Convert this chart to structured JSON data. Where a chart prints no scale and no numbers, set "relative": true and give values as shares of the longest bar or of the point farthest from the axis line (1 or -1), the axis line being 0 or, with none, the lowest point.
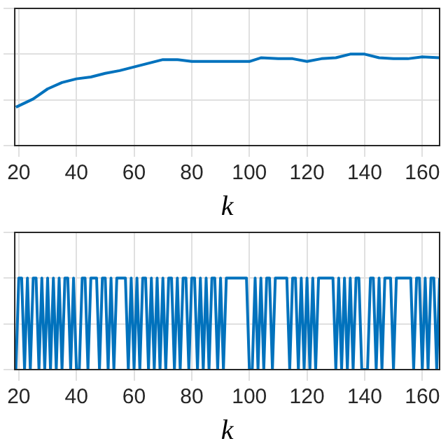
{
  "chart_data": [
    {
      "type": "line",
      "relative": true,
      "xlabel": "k",
      "xlim": [
        18.6,
        166
      ],
      "xticks": [
        20,
        40,
        60,
        80,
        100,
        120,
        140,
        160
      ],
      "grid": true,
      "marker": "none",
      "color": "#0072bd",
      "x": [
        19,
        25,
        30,
        35,
        40,
        45,
        50,
        55,
        60,
        65,
        70,
        75,
        80,
        85,
        90,
        100,
        104,
        110,
        115,
        120,
        125,
        130,
        135,
        140,
        145,
        150,
        155,
        160,
        166
      ],
      "values": [
        0.42,
        0.51,
        0.62,
        0.69,
        0.73,
        0.75,
        0.79,
        0.82,
        0.86,
        0.9,
        0.94,
        0.94,
        0.92,
        0.92,
        0.92,
        0.92,
        0.96,
        0.95,
        0.95,
        0.92,
        0.95,
        0.96,
        1,
        1,
        0.96,
        0.95,
        0.95,
        0.97,
        0.96
      ]
    },
    {
      "type": "line",
      "relative": true,
      "xlabel": "k",
      "xlim": [
        18.6,
        166
      ],
      "xticks": [
        20,
        40,
        60,
        80,
        100,
        120,
        140,
        160
      ],
      "grid": true,
      "marker": "none",
      "color": "#0072bd",
      "x": [
        19,
        20,
        21,
        22,
        23,
        24,
        25,
        26,
        27,
        28,
        29,
        30,
        31,
        32,
        33,
        34,
        35,
        36,
        37,
        38,
        39,
        40,
        41,
        42,
        43,
        44,
        45,
        46,
        47,
        48,
        49,
        50,
        51,
        52,
        53,
        54,
        55,
        56,
        57,
        58,
        59,
        60,
        61,
        62,
        63,
        64,
        65,
        66,
        67,
        68,
        69,
        70,
        71,
        72,
        73,
        74,
        75,
        76,
        77,
        78,
        79,
        80,
        81,
        82,
        83,
        84,
        85,
        86,
        87,
        88,
        89,
        90,
        91,
        92,
        93,
        94,
        95,
        96,
        97,
        98,
        99,
        100,
        101,
        102,
        103,
        104,
        105,
        106,
        107,
        108,
        109,
        110,
        111,
        112,
        113,
        114,
        115,
        116,
        117,
        118,
        119,
        120,
        121,
        122,
        123,
        124,
        125,
        126,
        127,
        128,
        129,
        130,
        131,
        132,
        133,
        134,
        135,
        136,
        137,
        138,
        139,
        140,
        141,
        142,
        143,
        144,
        145,
        146,
        147,
        148,
        149,
        150,
        151,
        152,
        153,
        154,
        155,
        156,
        157,
        158,
        159,
        160,
        161,
        162,
        163,
        164,
        165,
        166
      ],
      "values": [
        0,
        1,
        1,
        0,
        1,
        0,
        1,
        1,
        0,
        1,
        0,
        1,
        0,
        1,
        0,
        1,
        0,
        1,
        1,
        0,
        1,
        0,
        0,
        1,
        1,
        0,
        1,
        1,
        1,
        0,
        1,
        1,
        0,
        1,
        0,
        1,
        1,
        1,
        1,
        0,
        1,
        0,
        1,
        0,
        1,
        1,
        0,
        1,
        0,
        1,
        0,
        1,
        0,
        1,
        1,
        0,
        1,
        0,
        1,
        1,
        0,
        1,
        1,
        0,
        1,
        0,
        1,
        0,
        1,
        1,
        0,
        1,
        0,
        1,
        1,
        1,
        1,
        1,
        1,
        1,
        1,
        0,
        0,
        1,
        0,
        1,
        0,
        1,
        1,
        0,
        1,
        1,
        1,
        1,
        1,
        0,
        1,
        1,
        0,
        1,
        0,
        1,
        0,
        1,
        0,
        1,
        1,
        1,
        1,
        1,
        1,
        0,
        1,
        0,
        1,
        0,
        1,
        0,
        1,
        1,
        0,
        0,
        0,
        1,
        1,
        0,
        1,
        0,
        1,
        1,
        1,
        0,
        1,
        1,
        1,
        1,
        1,
        1,
        0,
        1,
        1,
        0,
        1,
        0,
        1,
        1,
        0,
        1
      ]
    }
  ]
}
